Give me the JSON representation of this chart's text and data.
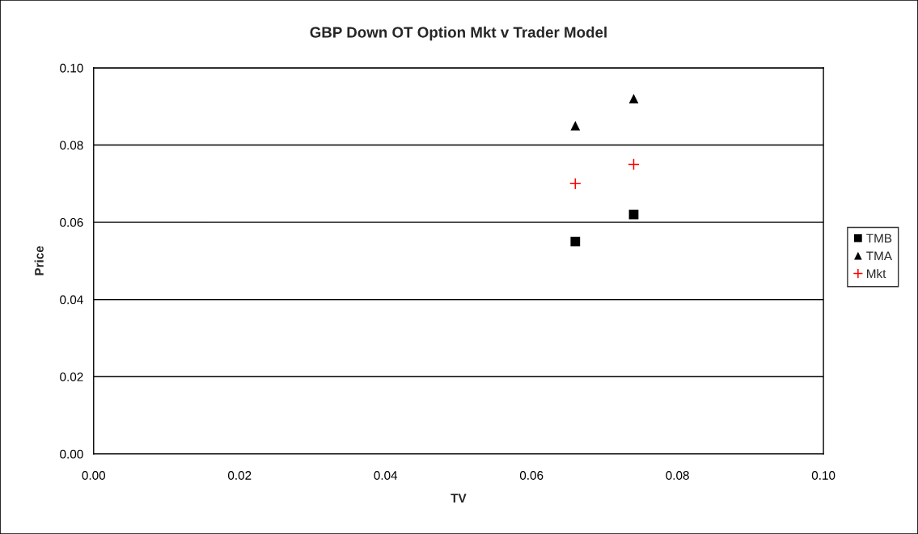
{
  "chart_data": {
    "type": "scatter",
    "title": "GBP Down OT Option Mkt v Trader Model",
    "xlabel": "TV",
    "ylabel": "Price",
    "x": [
      0.066,
      0.074
    ],
    "series": [
      {
        "name": "TMB",
        "color": "#000000",
        "marker": "square",
        "values": [
          0.055,
          0.062
        ]
      },
      {
        "name": "TMA",
        "color": "#000000",
        "marker": "triangle",
        "values": [
          0.085,
          0.092
        ]
      },
      {
        "name": "Mkt",
        "color": "#ff0000",
        "marker": "cross",
        "values": [
          0.07,
          0.075
        ]
      }
    ],
    "xlim": [
      0,
      0.1
    ],
    "ylim": [
      0,
      0.1
    ],
    "xticks": [
      {
        "value": 0,
        "label": "0.00"
      },
      0.02,
      0.04,
      0.06,
      0.08,
      {
        "value": 0.1,
        "label": "0.10"
      }
    ],
    "yticks": [
      {
        "value": 0,
        "label": "0.00"
      },
      0.02,
      0.04,
      0.06,
      0.08,
      {
        "value": 0.1,
        "label": "0.10"
      }
    ],
    "grid": "y",
    "legend": "right"
  }
}
